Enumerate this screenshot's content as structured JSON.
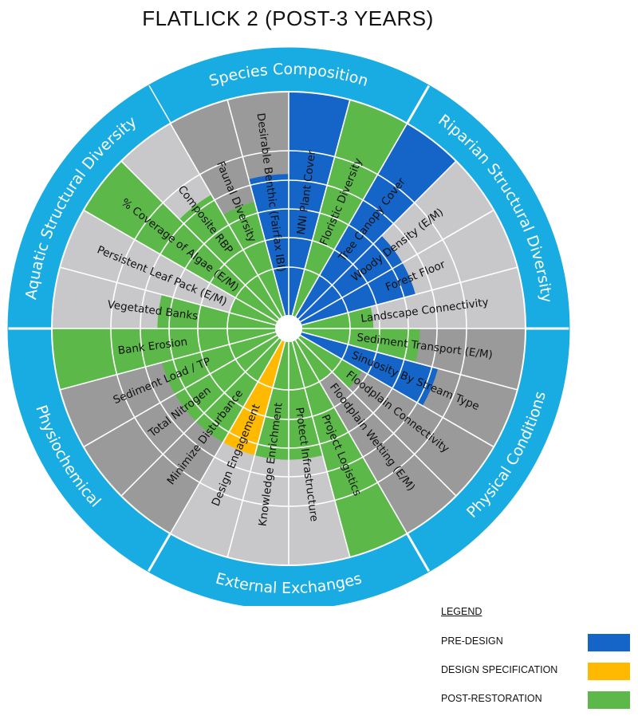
{
  "title": "FLATLICK 2 (POST-3 YEARS)",
  "colors": {
    "pre_design": "#1565C8",
    "design_specification": "#FFB900",
    "post_restoration": "#5DB84A",
    "gray_dark": "#9A9A9A",
    "gray_light": "#C8C8CB",
    "outer_ring": "#19ACE3"
  },
  "legend": {
    "heading": "LEGEND",
    "items": [
      {
        "label": "PRE-DESIGN",
        "color": "#1565C8"
      },
      {
        "label": "DESIGN SPECIFICATION",
        "color": "#FFB900"
      },
      {
        "label": "POST-RESTORATION",
        "color": "#5DB84A"
      }
    ]
  },
  "groups": [
    {
      "name": "Species Composition"
    },
    {
      "name": "Riparian Structural Diversity"
    },
    {
      "name": "Physical Conditions"
    },
    {
      "name": "External Exchanges"
    },
    {
      "name": "Physiochemical"
    },
    {
      "name": "Aquatic Structural Diversity"
    }
  ],
  "segments": [
    {
      "label": "NNI Plant Cover",
      "base": "dark",
      "fill": "blue",
      "level": 1
    },
    {
      "label": "Floristic Diversity",
      "base": "dark",
      "fill": "green",
      "level": 1
    },
    {
      "label": "Tree Canopy Cover",
      "base": "dark",
      "fill": "blue",
      "level": 1
    },
    {
      "label": "Woody Density (E/M)",
      "base": "light",
      "fill": "blue",
      "level": 0.6
    },
    {
      "label": "Forest Floor",
      "base": "light",
      "fill": "blue",
      "level": 0.6
    },
    {
      "label": "Landscape Connectivity",
      "base": "light",
      "fill": "green",
      "level": 0.2
    },
    {
      "label": "Sediment Transport (E/M)",
      "base": "dark",
      "fill": "green",
      "level": 0.6
    },
    {
      "label": "Sinuosity By Stream Type",
      "base": "dark",
      "fill": "blue",
      "level": 0.8
    },
    {
      "label": "Floodplain Connectivity",
      "base": "dark",
      "fill": "green",
      "level": 0.2
    },
    {
      "label": "Floodplain Wetting (E/M)",
      "base": "dark",
      "fill": "green",
      "level": 0
    },
    {
      "label": "Project Logistics",
      "base": "dark",
      "fill": "green",
      "level": 1
    },
    {
      "label": "Protect Infrastructure",
      "base": "light",
      "fill": "green",
      "level": 0.6
    },
    {
      "label": "Knowledge Enrichment",
      "base": "light",
      "fill": "green",
      "level": 0.6
    },
    {
      "label": "Design Engagement",
      "base": "light",
      "fill": "yellow",
      "level": 0.6
    },
    {
      "label": "Minimize Disturbance",
      "base": "dark",
      "fill": "green",
      "level": 0.6
    },
    {
      "label": "Total Nitrogen",
      "base": "dark",
      "fill": "green",
      "level": 0.6
    },
    {
      "label": "Sediment Load / TP",
      "base": "dark",
      "fill": "green",
      "level": 0.6
    },
    {
      "label": "Bank Erosion",
      "base": "dark",
      "fill": "green",
      "level": 1
    },
    {
      "label": "Vegetated Banks",
      "base": "light",
      "fill": "green",
      "level": 0.6
    },
    {
      "label": "Persistent Leaf Pack (E/M)",
      "base": "light",
      "fill": "green",
      "level": 0
    },
    {
      "label": "% Coverage of Algae (E/M)",
      "base": "light",
      "fill": "green",
      "level": 1
    },
    {
      "label": "Composite RBP",
      "base": "light",
      "fill": "green",
      "level": 0.8
    },
    {
      "label": "Faunal Diversity",
      "base": "dark",
      "fill": "green",
      "level": 0.6
    },
    {
      "label": "Desirable Benthic (Fairfax IBI)",
      "base": "dark",
      "fill": "blue",
      "level": 0.8
    }
  ]
}
